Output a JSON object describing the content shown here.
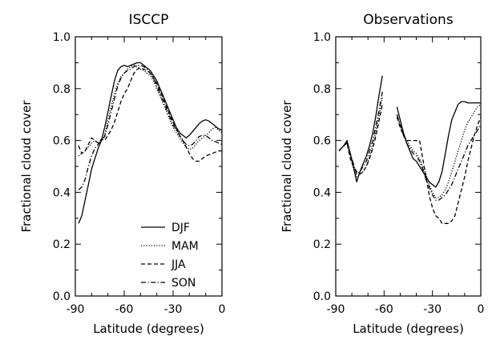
{
  "chart_data": [
    {
      "type": "line",
      "title": "ISCCP",
      "xlabel": "Latitude (degrees)",
      "ylabel": "Fractional cloud cover",
      "xlim": [
        -90,
        0
      ],
      "ylim": [
        0.0,
        1.0
      ],
      "xticks": [
        "-90",
        "-60",
        "-30",
        "0"
      ],
      "yticks": [
        "0.0",
        "0.2",
        "0.4",
        "0.6",
        "0.8",
        "1.0"
      ],
      "legend": "lower-center",
      "series": [
        {
          "name": "DJF",
          "dash": "solid",
          "x": [
            -88,
            -86,
            -84,
            -82,
            -80,
            -78,
            -76,
            -74,
            -72,
            -70,
            -68,
            -66,
            -64,
            -62,
            -60,
            -58,
            -56,
            -54,
            -52,
            -50,
            -48,
            -46,
            -44,
            -42,
            -40,
            -38,
            -36,
            -34,
            -32,
            -30,
            -28,
            -26,
            -24,
            -22,
            -20,
            -18,
            -16,
            -14,
            -12,
            -10,
            -8,
            -6,
            -4,
            -2,
            0
          ],
          "y": [
            0.28,
            0.31,
            0.37,
            0.43,
            0.49,
            0.53,
            0.57,
            0.6,
            0.65,
            0.71,
            0.77,
            0.83,
            0.87,
            0.885,
            0.89,
            0.885,
            0.89,
            0.895,
            0.9,
            0.9,
            0.89,
            0.88,
            0.87,
            0.85,
            0.83,
            0.8,
            0.77,
            0.74,
            0.71,
            0.68,
            0.65,
            0.63,
            0.62,
            0.61,
            0.62,
            0.635,
            0.65,
            0.665,
            0.675,
            0.68,
            0.675,
            0.665,
            0.655,
            0.645,
            0.64
          ]
        },
        {
          "name": "MAM",
          "dash": "dotted",
          "x": [
            -88,
            -86,
            -84,
            -82,
            -80,
            -78,
            -76,
            -74,
            -72,
            -70,
            -68,
            -66,
            -64,
            -62,
            -60,
            -58,
            -56,
            -54,
            -52,
            -50,
            -48,
            -46,
            -44,
            -42,
            -40,
            -38,
            -36,
            -34,
            -32,
            -30,
            -28,
            -26,
            -24,
            -22,
            -20,
            -18,
            -16,
            -14,
            -12,
            -10,
            -8,
            -6,
            -4,
            -2,
            0
          ],
          "y": [
            0.54,
            0.55,
            0.56,
            0.575,
            0.59,
            0.6,
            0.59,
            0.6,
            0.62,
            0.68,
            0.73,
            0.78,
            0.82,
            0.845,
            0.86,
            0.875,
            0.885,
            0.89,
            0.885,
            0.875,
            0.87,
            0.86,
            0.85,
            0.83,
            0.8,
            0.77,
            0.74,
            0.71,
            0.68,
            0.65,
            0.63,
            0.61,
            0.59,
            0.575,
            0.565,
            0.57,
            0.585,
            0.6,
            0.61,
            0.62,
            0.63,
            0.645,
            0.65,
            0.64,
            0.63
          ]
        },
        {
          "name": "JJA",
          "dash": "dashed",
          "x": [
            -88,
            -86,
            -84,
            -82,
            -80,
            -78,
            -76,
            -74,
            -72,
            -70,
            -68,
            -66,
            -64,
            -62,
            -60,
            -58,
            -56,
            -54,
            -52,
            -50,
            -48,
            -46,
            -44,
            -42,
            -40,
            -38,
            -36,
            -34,
            -32,
            -30,
            -28,
            -26,
            -24,
            -22,
            -20,
            -18,
            -16,
            -14,
            -12,
            -10,
            -8,
            -6,
            -4,
            -2,
            0
          ],
          "y": [
            0.58,
            0.55,
            0.56,
            0.585,
            0.61,
            0.6,
            0.59,
            0.605,
            0.6,
            0.62,
            0.64,
            0.67,
            0.71,
            0.75,
            0.78,
            0.8,
            0.83,
            0.86,
            0.875,
            0.88,
            0.875,
            0.87,
            0.86,
            0.84,
            0.82,
            0.79,
            0.76,
            0.73,
            0.7,
            0.67,
            0.645,
            0.62,
            0.6,
            0.575,
            0.55,
            0.53,
            0.52,
            0.52,
            0.53,
            0.54,
            0.545,
            0.55,
            0.555,
            0.56,
            0.56
          ]
        },
        {
          "name": "SON",
          "dash": "dashdot",
          "x": [
            -88,
            -86,
            -84,
            -82,
            -80,
            -78,
            -76,
            -74,
            -72,
            -70,
            -68,
            -66,
            -64,
            -62,
            -60,
            -58,
            -56,
            -54,
            -52,
            -50,
            -48,
            -46,
            -44,
            -42,
            -40,
            -38,
            -36,
            -34,
            -32,
            -30,
            -28,
            -26,
            -24,
            -22,
            -20,
            -18,
            -16,
            -14,
            -12,
            -10,
            -8,
            -6,
            -4,
            -2,
            0
          ],
          "y": [
            0.41,
            0.42,
            0.45,
            0.5,
            0.54,
            0.57,
            0.585,
            0.6,
            0.615,
            0.66,
            0.71,
            0.76,
            0.81,
            0.84,
            0.86,
            0.87,
            0.875,
            0.885,
            0.89,
            0.89,
            0.885,
            0.875,
            0.86,
            0.84,
            0.81,
            0.78,
            0.75,
            0.72,
            0.69,
            0.66,
            0.64,
            0.62,
            0.6,
            0.585,
            0.58,
            0.585,
            0.6,
            0.615,
            0.62,
            0.62,
            0.61,
            0.6,
            0.595,
            0.59,
            0.585
          ]
        }
      ]
    },
    {
      "type": "line",
      "title": "Observations",
      "xlabel": "Latitude (degrees)",
      "ylabel": "Fractional cloud cover",
      "xlim": [
        -90,
        0
      ],
      "ylim": [
        0.0,
        1.0
      ],
      "xticks": [
        "-90",
        "-60",
        "-30",
        "0"
      ],
      "yticks": [
        "0.0",
        "0.2",
        "0.4",
        "0.6",
        "0.8",
        "1.0"
      ],
      "series": [
        {
          "name": "DJF",
          "dash": "solid",
          "segments": [
            {
              "x": [
                -88,
                -85,
                -83,
                -81,
                -79,
                -77,
                -75,
                -73,
                -71,
                -69,
                -67,
                -65,
                -63,
                -61
              ],
              "y": [
                0.56,
                0.58,
                0.6,
                0.55,
                0.5,
                0.44,
                0.48,
                0.51,
                0.54,
                0.58,
                0.63,
                0.7,
                0.78,
                0.85
              ]
            },
            {
              "x": [
                -52,
                -50,
                -48,
                -46,
                -44,
                -42,
                -40,
                -38,
                -36,
                -34,
                -32,
                -30,
                -28,
                -26,
                -24,
                -22,
                -20,
                -18,
                -16,
                -14,
                -12,
                -10,
                -8,
                -6,
                -4,
                -2,
                0
              ],
              "y": [
                0.73,
                0.68,
                0.63,
                0.59,
                0.56,
                0.53,
                0.52,
                0.5,
                0.48,
                0.46,
                0.44,
                0.43,
                0.42,
                0.44,
                0.48,
                0.55,
                0.62,
                0.68,
                0.71,
                0.74,
                0.75,
                0.75,
                0.745,
                0.745,
                0.745,
                0.745,
                0.745
              ]
            }
          ]
        },
        {
          "name": "MAM",
          "dash": "dotted",
          "segments": [
            {
              "x": [
                -88,
                -85,
                -83,
                -81,
                -79,
                -77,
                -75,
                -73,
                -71,
                -69,
                -67,
                -65,
                -63,
                -61
              ],
              "y": [
                0.56,
                0.58,
                0.59,
                0.54,
                0.49,
                0.46,
                0.47,
                0.48,
                0.5,
                0.54,
                0.58,
                0.64,
                0.7,
                0.77
              ]
            },
            {
              "x": [
                -52,
                -50,
                -48,
                -46,
                -44,
                -42,
                -40,
                -38,
                -36,
                -34,
                -32,
                -30,
                -28,
                -26,
                -24,
                -22,
                -20,
                -18,
                -16,
                -14,
                -12,
                -10,
                -8,
                -6,
                -4,
                -2,
                0
              ],
              "y": [
                0.7,
                0.66,
                0.62,
                0.6,
                0.58,
                0.56,
                0.55,
                0.53,
                0.5,
                0.47,
                0.43,
                0.4,
                0.38,
                0.38,
                0.39,
                0.41,
                0.44,
                0.48,
                0.52,
                0.56,
                0.6,
                0.64,
                0.67,
                0.69,
                0.71,
                0.73,
                0.74
              ]
            }
          ]
        },
        {
          "name": "JJA",
          "dash": "dashed",
          "segments": [
            {
              "x": [
                -88,
                -85,
                -83,
                -81,
                -79,
                -77,
                -75,
                -73,
                -71,
                -69,
                -67,
                -65,
                -63,
                -61
              ],
              "y": [
                0.56,
                0.58,
                0.59,
                0.53,
                0.5,
                0.48,
                0.47,
                0.48,
                0.5,
                0.53,
                0.57,
                0.62,
                0.68,
                0.74
              ]
            },
            {
              "x": [
                -52,
                -50,
                -48,
                -46,
                -44,
                -42,
                -40,
                -38,
                -36,
                -34,
                -32,
                -30,
                -28,
                -26,
                -24,
                -22,
                -20,
                -18,
                -16,
                -14,
                -12,
                -10,
                -8,
                -6,
                -4,
                -2,
                0
              ],
              "y": [
                0.69,
                0.65,
                0.62,
                0.6,
                0.6,
                0.6,
                0.6,
                0.6,
                0.53,
                0.46,
                0.39,
                0.34,
                0.31,
                0.3,
                0.28,
                0.28,
                0.28,
                0.29,
                0.31,
                0.36,
                0.41,
                0.46,
                0.52,
                0.57,
                0.62,
                0.66,
                0.69
              ]
            }
          ]
        },
        {
          "name": "SON",
          "dash": "dashdot",
          "segments": [
            {
              "x": [
                -88,
                -85,
                -83,
                -81,
                -79,
                -77,
                -75,
                -73,
                -71,
                -69,
                -67,
                -65,
                -63,
                -61
              ],
              "y": [
                0.56,
                0.58,
                0.59,
                0.55,
                0.51,
                0.47,
                0.48,
                0.5,
                0.52,
                0.56,
                0.6,
                0.66,
                0.72,
                0.79
              ]
            },
            {
              "x": [
                -52,
                -50,
                -48,
                -46,
                -44,
                -42,
                -40,
                -38,
                -36,
                -34,
                -32,
                -30,
                -28,
                -26,
                -24,
                -22,
                -20,
                -18,
                -16,
                -14,
                -12,
                -10,
                -8,
                -6,
                -4,
                -2,
                0
              ],
              "y": [
                0.7,
                0.66,
                0.62,
                0.59,
                0.57,
                0.55,
                0.54,
                0.52,
                0.49,
                0.45,
                0.42,
                0.39,
                0.37,
                0.37,
                0.38,
                0.39,
                0.41,
                0.43,
                0.46,
                0.49,
                0.52,
                0.55,
                0.58,
                0.6,
                0.62,
                0.64,
                0.66
              ]
            }
          ]
        }
      ]
    }
  ]
}
